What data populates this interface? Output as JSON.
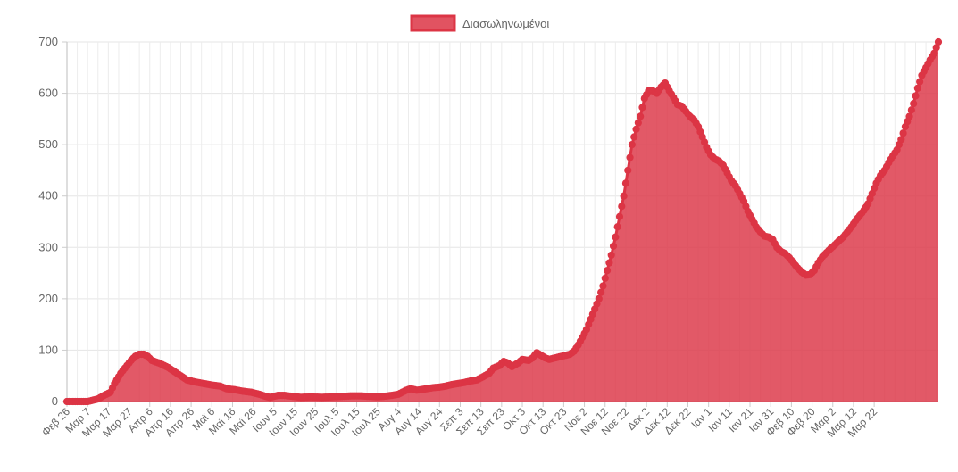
{
  "chart_data": {
    "type": "area",
    "title": "",
    "xlabel": "",
    "ylabel": "",
    "ylim": [
      0,
      700
    ],
    "yticks": [
      0,
      100,
      200,
      300,
      400,
      500,
      600,
      700
    ],
    "grid": true,
    "legend_position": "top-center",
    "x_tick_labels": [
      "Φεβ 26",
      "Μαρ 7",
      "Μαρ 17",
      "Μαρ 27",
      "Απρ 6",
      "Απρ 16",
      "Απρ 26",
      "Μαϊ 6",
      "Μαϊ 16",
      "Μαϊ 26",
      "Ιουν 5",
      "Ιουν 15",
      "Ιουν 25",
      "Ιουλ 5",
      "Ιουλ 15",
      "Ιουλ 25",
      "Αυγ 4",
      "Αυγ 14",
      "Αυγ 24",
      "Σεπ 3",
      "Σεπ 13",
      "Σεπ 23",
      "Οκτ 3",
      "Οκτ 13",
      "Οκτ 23",
      "Νοε 2",
      "Νοε 12",
      "Νοε 22",
      "Δεκ 2",
      "Δεκ 12",
      "Δεκ 22",
      "Ιαν 1",
      "Ιαν 11",
      "Ιαν 21",
      "Ιαν 31",
      "Φεβ 10",
      "Φεβ 20",
      "Μαρ 2",
      "Μαρ 12",
      "Μαρ 22"
    ],
    "series": [
      {
        "name": "Διασωληνωμένοι",
        "color": "#dc3545",
        "keypoints_day_value": [
          [
            0,
            0
          ],
          [
            10,
            0
          ],
          [
            15,
            5
          ],
          [
            18,
            12
          ],
          [
            21,
            18
          ],
          [
            23,
            35
          ],
          [
            26,
            55
          ],
          [
            29,
            70
          ],
          [
            31,
            80
          ],
          [
            33,
            88
          ],
          [
            35,
            92
          ],
          [
            37,
            92
          ],
          [
            39,
            88
          ],
          [
            41,
            80
          ],
          [
            43,
            77
          ],
          [
            45,
            74
          ],
          [
            47,
            70
          ],
          [
            49,
            66
          ],
          [
            52,
            58
          ],
          [
            55,
            50
          ],
          [
            58,
            42
          ],
          [
            62,
            38
          ],
          [
            66,
            35
          ],
          [
            70,
            32
          ],
          [
            74,
            30
          ],
          [
            77,
            25
          ],
          [
            81,
            23
          ],
          [
            85,
            20
          ],
          [
            89,
            18
          ],
          [
            93,
            14
          ],
          [
            96,
            10
          ],
          [
            98,
            8
          ],
          [
            100,
            10
          ],
          [
            102,
            12
          ],
          [
            105,
            12
          ],
          [
            109,
            10
          ],
          [
            113,
            8
          ],
          [
            118,
            9
          ],
          [
            123,
            8
          ],
          [
            128,
            9
          ],
          [
            133,
            10
          ],
          [
            138,
            11
          ],
          [
            142,
            11
          ],
          [
            146,
            10
          ],
          [
            150,
            9
          ],
          [
            153,
            10
          ],
          [
            157,
            12
          ],
          [
            160,
            14
          ],
          [
            162,
            18
          ],
          [
            164,
            22
          ],
          [
            166,
            25
          ],
          [
            169,
            22
          ],
          [
            171,
            23
          ],
          [
            174,
            25
          ],
          [
            177,
            27
          ],
          [
            180,
            28
          ],
          [
            183,
            30
          ],
          [
            186,
            33
          ],
          [
            189,
            35
          ],
          [
            192,
            37
          ],
          [
            195,
            40
          ],
          [
            198,
            42
          ],
          [
            201,
            48
          ],
          [
            204,
            55
          ],
          [
            206,
            65
          ],
          [
            209,
            70
          ],
          [
            211,
            78
          ],
          [
            213,
            75
          ],
          [
            215,
            68
          ],
          [
            218,
            75
          ],
          [
            220,
            82
          ],
          [
            223,
            80
          ],
          [
            225,
            85
          ],
          [
            227,
            95
          ],
          [
            229,
            90
          ],
          [
            231,
            85
          ],
          [
            233,
            82
          ],
          [
            235,
            84
          ],
          [
            238,
            87
          ],
          [
            241,
            90
          ],
          [
            243,
            92
          ],
          [
            245,
            98
          ],
          [
            247,
            110
          ],
          [
            249,
            125
          ],
          [
            251,
            140
          ],
          [
            253,
            160
          ],
          [
            255,
            180
          ],
          [
            257,
            200
          ],
          [
            259,
            225
          ],
          [
            261,
            255
          ],
          [
            263,
            285
          ],
          [
            265,
            320
          ],
          [
            267,
            360
          ],
          [
            269,
            400
          ],
          [
            271,
            450
          ],
          [
            273,
            500
          ],
          [
            275,
            530
          ],
          [
            277,
            555
          ],
          [
            279,
            590
          ],
          [
            281,
            605
          ],
          [
            283,
            605
          ],
          [
            285,
            600
          ],
          [
            287,
            612
          ],
          [
            289,
            620
          ],
          [
            291,
            605
          ],
          [
            293,
            592
          ],
          [
            295,
            578
          ],
          [
            297,
            575
          ],
          [
            299,
            565
          ],
          [
            301,
            555
          ],
          [
            303,
            548
          ],
          [
            305,
            535
          ],
          [
            307,
            515
          ],
          [
            309,
            495
          ],
          [
            311,
            480
          ],
          [
            313,
            472
          ],
          [
            315,
            468
          ],
          [
            317,
            460
          ],
          [
            319,
            445
          ],
          [
            321,
            430
          ],
          [
            323,
            420
          ],
          [
            325,
            405
          ],
          [
            327,
            390
          ],
          [
            329,
            370
          ],
          [
            331,
            355
          ],
          [
            333,
            340
          ],
          [
            335,
            330
          ],
          [
            337,
            322
          ],
          [
            339,
            320
          ],
          [
            341,
            315
          ],
          [
            343,
            300
          ],
          [
            345,
            292
          ],
          [
            347,
            288
          ],
          [
            349,
            280
          ],
          [
            351,
            270
          ],
          [
            353,
            260
          ],
          [
            355,
            252
          ],
          [
            357,
            246
          ],
          [
            359,
            247
          ],
          [
            361,
            255
          ],
          [
            363,
            270
          ],
          [
            365,
            282
          ],
          [
            367,
            290
          ],
          [
            369,
            298
          ],
          [
            371,
            305
          ],
          [
            373,
            313
          ],
          [
            375,
            320
          ],
          [
            377,
            330
          ],
          [
            379,
            340
          ],
          [
            381,
            352
          ],
          [
            383,
            362
          ],
          [
            385,
            372
          ],
          [
            387,
            385
          ],
          [
            389,
            405
          ],
          [
            391,
            425
          ],
          [
            393,
            440
          ],
          [
            395,
            450
          ],
          [
            397,
            465
          ],
          [
            399,
            478
          ],
          [
            401,
            490
          ],
          [
            403,
            510
          ],
          [
            405,
            535
          ],
          [
            407,
            555
          ],
          [
            409,
            580
          ],
          [
            411,
            610
          ],
          [
            413,
            635
          ],
          [
            415,
            650
          ],
          [
            417,
            665
          ],
          [
            419,
            678
          ],
          [
            421,
            700
          ]
        ]
      }
    ]
  }
}
